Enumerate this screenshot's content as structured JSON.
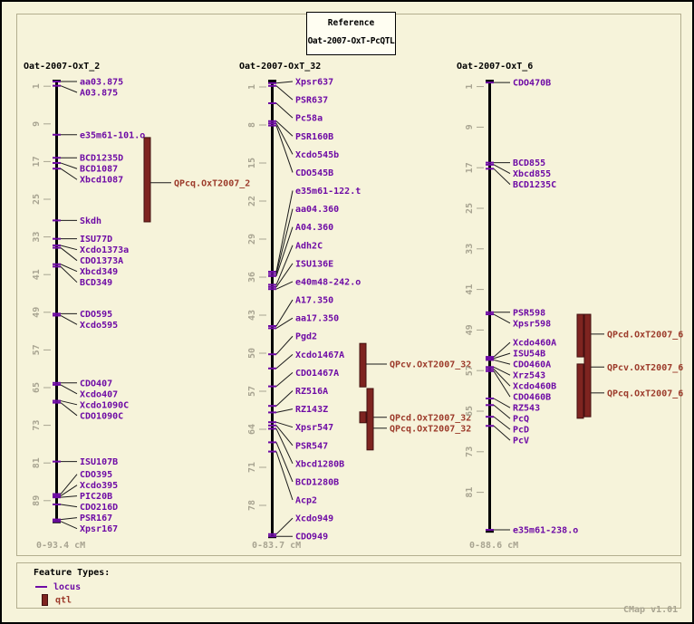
{
  "header": {
    "reference_label": "Reference",
    "reference_value": "Oat-2007-OxT-PcQTL"
  },
  "legend": {
    "title": "Feature Types:",
    "items": [
      {
        "label": "locus"
      },
      {
        "label": "qtl"
      }
    ]
  },
  "footer": {
    "version": "CMap v1.01"
  },
  "colors": {
    "background": "#f6f3da",
    "panel_border": "#b3ae8f",
    "backbone": "#000000",
    "locus": "#6e0ba5",
    "muted": "#a8a491",
    "line": "#1b1b1b",
    "qtl_fill": "#7e2420",
    "qtl_border": "#431010",
    "qtl_text": "#9c3a2a"
  },
  "chart_data": {
    "type": "genetic-linkage-map",
    "unit": "cM",
    "maps": [
      {
        "title": "Oat-2007-OxT_2",
        "range_label": "0-93.4 cM",
        "length_cM": 93.4,
        "tick_start": 1,
        "tick_step": 8,
        "label_layout": "cluster",
        "markers": [
          {
            "name": "aa03.875",
            "pos": 0.0
          },
          {
            "name": "A03.875",
            "pos": 0.9
          },
          {
            "name": "e35m61-101.o",
            "pos": 11.3
          },
          {
            "name": "BCD1235D",
            "pos": 16.2
          },
          {
            "name": "BCD1087",
            "pos": 17.3
          },
          {
            "name": "Xbcd1087",
            "pos": 18.5
          },
          {
            "name": "Skdh",
            "pos": 29.5
          },
          {
            "name": "ISU77D",
            "pos": 33.4
          },
          {
            "name": "Xcdo1373a",
            "pos": 34.8
          },
          {
            "name": "CDO1373A",
            "pos": 35.3
          },
          {
            "name": "Xbcd349",
            "pos": 38.8
          },
          {
            "name": "BCD349",
            "pos": 39.3
          },
          {
            "name": "CDO595",
            "pos": 49.3
          },
          {
            "name": "Xcdo595",
            "pos": 49.7
          },
          {
            "name": "CDO407",
            "pos": 64.0
          },
          {
            "name": "Xcdo407",
            "pos": 64.4
          },
          {
            "name": "Xcdo1090C",
            "pos": 67.8
          },
          {
            "name": "CDO1090C",
            "pos": 68.2
          },
          {
            "name": "ISU107B",
            "pos": 80.7
          },
          {
            "name": "CDO395",
            "pos": 87.6
          },
          {
            "name": "Xcdo395",
            "pos": 88.0
          },
          {
            "name": "PIC20B",
            "pos": 88.3
          },
          {
            "name": "CDO216D",
            "pos": 89.8
          },
          {
            "name": "PSR167",
            "pos": 93.0
          },
          {
            "name": "Xpsr167",
            "pos": 93.4
          }
        ],
        "qtls": [
          {
            "name": "QPcq.OxT2007_2",
            "start": 11.9,
            "end": 29.8,
            "label_pos": 21.5,
            "lane": 0
          }
        ]
      },
      {
        "title": "Oat-2007-OxT_32",
        "range_label": "0-83.7 cM",
        "length_cM": 83.7,
        "tick_start": 1,
        "tick_step": 7,
        "label_layout": "spread",
        "markers": [
          {
            "name": "Xpsr637",
            "pos": 0.3
          },
          {
            "name": "PSR637",
            "pos": 0.8
          },
          {
            "name": "Pc58a",
            "pos": 4.0
          },
          {
            "name": "PSR160B",
            "pos": 7.3
          },
          {
            "name": "Xcdo545b",
            "pos": 7.7
          },
          {
            "name": "CDO545B",
            "pos": 8.1
          },
          {
            "name": "e35m61-122.t",
            "pos": 35.0
          },
          {
            "name": "aa04.360",
            "pos": 35.4
          },
          {
            "name": "A04.360",
            "pos": 35.8
          },
          {
            "name": "Adh2C",
            "pos": 37.4
          },
          {
            "name": "ISU136E",
            "pos": 37.8
          },
          {
            "name": "e40m48-242.o",
            "pos": 38.2
          },
          {
            "name": "A17.350",
            "pos": 45.0
          },
          {
            "name": "aa17.350",
            "pos": 45.4
          },
          {
            "name": "Pgd2",
            "pos": 50.2
          },
          {
            "name": "Xcdo1467A",
            "pos": 52.8
          },
          {
            "name": "CDO1467A",
            "pos": 56.1
          },
          {
            "name": "RZ516A",
            "pos": 59.7
          },
          {
            "name": "RZ143Z",
            "pos": 60.9
          },
          {
            "name": "Xpsr547",
            "pos": 62.7
          },
          {
            "name": "PSR547",
            "pos": 63.3
          },
          {
            "name": "Xbcd1280B",
            "pos": 63.9
          },
          {
            "name": "BCD1280B",
            "pos": 66.4
          },
          {
            "name": "Acp2",
            "pos": 68.1
          },
          {
            "name": "Xcdo949",
            "pos": 83.3
          },
          {
            "name": "CDO949",
            "pos": 83.7
          }
        ],
        "qtls": [
          {
            "name": "QPcv.OxT2007_32",
            "start": 48.2,
            "end": 56.2,
            "label_pos": 52.0,
            "lane": 0
          },
          {
            "name": "QPcd.OxT2007_32",
            "start": 60.8,
            "end": 62.8,
            "label_pos": 61.8,
            "lane": 0
          },
          {
            "name": "QPcq.OxT2007_32",
            "start": 56.5,
            "end": 67.8,
            "label_pos": 63.8,
            "lane": 1
          }
        ]
      },
      {
        "title": "Oat-2007-OxT_6",
        "range_label": "0-88.6 cM",
        "length_cM": 88.6,
        "tick_start": 1,
        "tick_step": 8,
        "label_layout": "cluster",
        "markers": [
          {
            "name": "CDO470B",
            "pos": 0.2
          },
          {
            "name": "BCD855",
            "pos": 16.0
          },
          {
            "name": "Xbcd855",
            "pos": 16.4
          },
          {
            "name": "BCD1235C",
            "pos": 17.2
          },
          {
            "name": "PSR598",
            "pos": 45.5
          },
          {
            "name": "Xpsr598",
            "pos": 45.9
          },
          {
            "name": "Xcdo460A",
            "pos": 54.3
          },
          {
            "name": "ISU54B",
            "pos": 54.6
          },
          {
            "name": "CDO460A",
            "pos": 54.9
          },
          {
            "name": "Xrz543",
            "pos": 56.3
          },
          {
            "name": "Xcdo460B",
            "pos": 56.7
          },
          {
            "name": "CDO460B",
            "pos": 57.1
          },
          {
            "name": "RZ543",
            "pos": 62.5
          },
          {
            "name": "PcQ",
            "pos": 63.8
          },
          {
            "name": "PcD",
            "pos": 66.1
          },
          {
            "name": "PcV",
            "pos": 67.9
          },
          {
            "name": "e35m61-238.o",
            "pos": 88.4
          }
        ],
        "qtls": [
          {
            "name": "QPcd.OxT2007_6",
            "start": 45.9,
            "end": 54.3,
            "label_pos": 49.8,
            "lane": 0
          },
          {
            "name": "QPcv.OxT2007_6",
            "start": 55.7,
            "end": 66.4,
            "label_pos": 56.3,
            "lane": 0
          },
          {
            "name": "QPcq.OxT2007_6",
            "start": 45.9,
            "end": 66.1,
            "label_pos": 61.4,
            "lane": 1
          }
        ]
      }
    ]
  }
}
